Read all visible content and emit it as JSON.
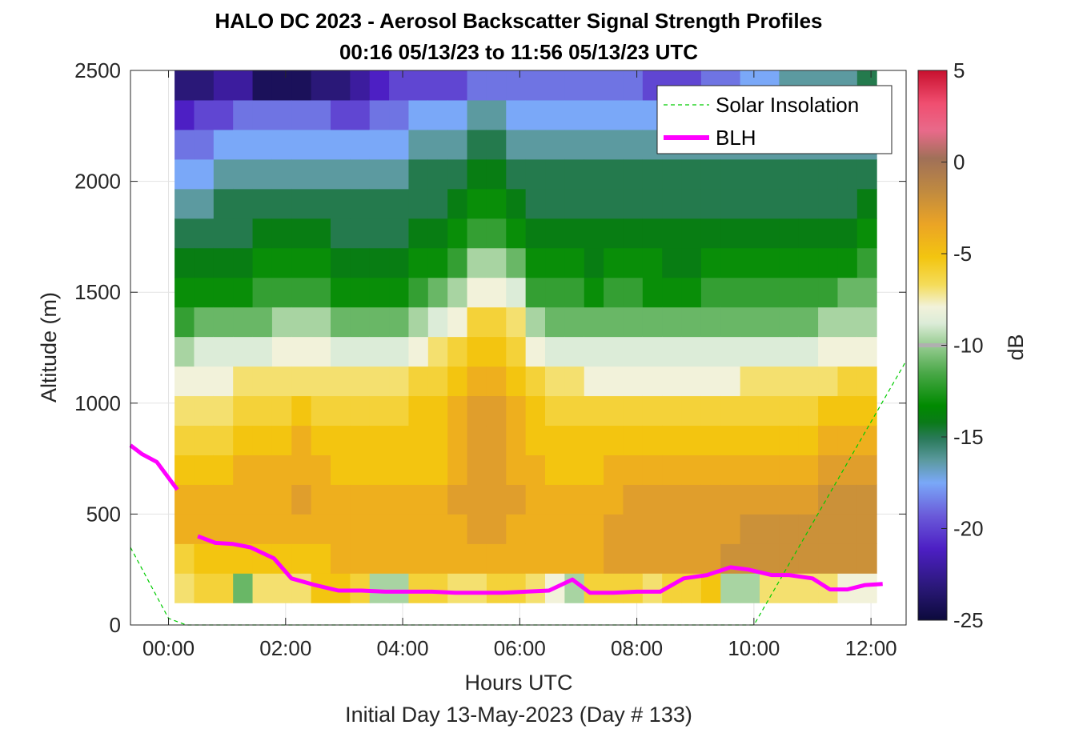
{
  "chart_data": {
    "type": "heatmap",
    "title": "HALO DC 2023 - Aerosol Backscatter Signal Strength Profiles",
    "subtitle": "00:16 05/13/23 to 11:56 05/13/23  UTC",
    "xlabel": "Hours UTC",
    "xlabel2": "Initial Day 13-May-2023 (Day # 133)",
    "ylabel": "Altitude (m)",
    "xlim": [
      -0.65,
      12.6
    ],
    "ylim": [
      0,
      2500
    ],
    "x_ticks": [
      {
        "value": 0,
        "label": "00:00"
      },
      {
        "value": 2,
        "label": "02:00"
      },
      {
        "value": 4,
        "label": "04:00"
      },
      {
        "value": 6,
        "label": "06:00"
      },
      {
        "value": 8,
        "label": "08:00"
      },
      {
        "value": 10,
        "label": "10:00"
      },
      {
        "value": 12,
        "label": "12:00"
      }
    ],
    "y_ticks": [
      {
        "value": 0,
        "label": "0"
      },
      {
        "value": 500,
        "label": "500"
      },
      {
        "value": 1000,
        "label": "1000"
      },
      {
        "value": 1500,
        "label": "1500"
      },
      {
        "value": 2000,
        "label": "2000"
      },
      {
        "value": 2500,
        "label": "2500"
      }
    ],
    "grid": true,
    "colorbar": {
      "label": "dB",
      "range": [
        -25,
        5
      ],
      "ticks": [
        {
          "value": 5,
          "label": "5"
        },
        {
          "value": 0,
          "label": "0"
        },
        {
          "value": -5,
          "label": "-5"
        },
        {
          "value": -10,
          "label": "-10"
        },
        {
          "value": -15,
          "label": "-15"
        },
        {
          "value": -20,
          "label": "-20"
        },
        {
          "value": -25,
          "label": "-25"
        }
      ]
    },
    "heatmap": {
      "x_start": 0.27,
      "x_end": 11.93,
      "y_start": 100,
      "y_end": 2500,
      "profiles": [
        {
          "time": 0.27,
          "top": 2500,
          "db": [
            -8,
            -7,
            -5,
            -5,
            -6,
            -7,
            -8,
            -9,
            -11,
            -13,
            -14,
            -15,
            -16,
            -17,
            -18,
            -19,
            -21,
            -23
          ]
        },
        {
          "time": 0.6,
          "top": 2500,
          "db": [
            -7,
            -6,
            -5,
            -5,
            -6,
            -7,
            -8,
            -9,
            -10,
            -12,
            -14,
            -15,
            -16,
            -17,
            -18,
            -19,
            -20,
            -23
          ]
        },
        {
          "time": 0.93,
          "top": 2500,
          "db": [
            -7,
            -6,
            -5,
            -5,
            -6,
            -7,
            -8,
            -9,
            -10,
            -12,
            -14,
            -15,
            -16,
            -16,
            -17,
            -18,
            -20,
            -22
          ]
        },
        {
          "time": 1.27,
          "top": 2500,
          "db": [
            -12,
            -6,
            -5,
            -5,
            -5,
            -6,
            -7,
            -8,
            -10,
            -12,
            -14,
            -15,
            -16,
            -16,
            -17,
            -18,
            -19,
            -22
          ]
        },
        {
          "time": 1.6,
          "top": 2500,
          "db": [
            -8,
            -6,
            -5,
            -5,
            -5,
            -6,
            -7,
            -8,
            -10,
            -12,
            -13,
            -14,
            -15,
            -16,
            -17,
            -18,
            -19,
            -24
          ]
        },
        {
          "time": 1.93,
          "top": 2500,
          "db": [
            -8,
            -6,
            -5,
            -5,
            -5,
            -6,
            -7,
            -8,
            -9,
            -11,
            -13,
            -14,
            -15,
            -16,
            -17,
            -18,
            -19,
            -24
          ]
        },
        {
          "time": 2.27,
          "top": 2500,
          "db": [
            -8,
            -6,
            -5,
            -4,
            -5,
            -5,
            -6,
            -8,
            -9,
            -11,
            -13,
            -14,
            -15,
            -16,
            -17,
            -18,
            -19,
            -24
          ]
        },
        {
          "time": 2.6,
          "top": 2500,
          "db": [
            -6,
            -6,
            -5,
            -5,
            -5,
            -6,
            -7,
            -8,
            -9,
            -11,
            -13,
            -14,
            -15,
            -16,
            -17,
            -18,
            -19,
            -23
          ]
        },
        {
          "time": 2.93,
          "top": 2500,
          "db": [
            -6,
            -5,
            -5,
            -5,
            -6,
            -6,
            -7,
            -8,
            -10,
            -12,
            -14,
            -15,
            -16,
            -16,
            -17,
            -18,
            -20,
            -23
          ]
        },
        {
          "time": 3.27,
          "top": 2500,
          "db": [
            -7,
            -5,
            -5,
            -5,
            -6,
            -6,
            -7,
            -8,
            -10,
            -12,
            -14,
            -15,
            -16,
            -16,
            -17,
            -18,
            -20,
            -22
          ]
        },
        {
          "time": 3.6,
          "top": 2500,
          "db": [
            -11,
            -5,
            -5,
            -5,
            -6,
            -6,
            -7,
            -8,
            -10,
            -12,
            -14,
            -15,
            -16,
            -16,
            -17,
            -18,
            -19,
            -21
          ]
        },
        {
          "time": 3.93,
          "top": 2500,
          "db": [
            -11,
            -5,
            -5,
            -5,
            -6,
            -6,
            -7,
            -8,
            -10,
            -12,
            -14,
            -15,
            -16,
            -16,
            -17,
            -18,
            -19,
            -20
          ]
        },
        {
          "time": 4.27,
          "top": 2500,
          "db": [
            -7,
            -5,
            -5,
            -5,
            -6,
            -6,
            -6,
            -7,
            -9,
            -11,
            -13,
            -14,
            -15,
            -16,
            -16,
            -17,
            -18,
            -20
          ]
        },
        {
          "time": 4.6,
          "top": 2500,
          "db": [
            -7,
            -5,
            -5,
            -5,
            -6,
            -6,
            -6,
            -7,
            -8,
            -10,
            -12,
            -14,
            -15,
            -16,
            -16,
            -17,
            -18,
            -20
          ]
        },
        {
          "time": 4.93,
          "top": 2500,
          "db": [
            -8,
            -5,
            -5,
            -4,
            -5,
            -5,
            -5,
            -6,
            -7,
            -9,
            -11,
            -13,
            -14,
            -15,
            -16,
            -17,
            -18,
            -20
          ]
        },
        {
          "time": 5.27,
          "top": 2500,
          "db": [
            -8,
            -5,
            -4,
            -4,
            -4,
            -4,
            -4,
            -5,
            -6,
            -7,
            -9,
            -11,
            -13,
            -14,
            -15,
            -16,
            -17,
            -19
          ]
        },
        {
          "time": 5.6,
          "top": 2500,
          "db": [
            -7,
            -5,
            -4,
            -4,
            -4,
            -4,
            -4,
            -5,
            -6,
            -7,
            -9,
            -11,
            -13,
            -14,
            -15,
            -16,
            -17,
            -19
          ]
        },
        {
          "time": 5.93,
          "top": 2500,
          "db": [
            -7,
            -5,
            -5,
            -4,
            -5,
            -5,
            -5,
            -6,
            -7,
            -8,
            -10,
            -12,
            -14,
            -15,
            -16,
            -17,
            -18,
            -19
          ]
        },
        {
          "time": 6.27,
          "top": 2500,
          "db": [
            -8,
            -5,
            -5,
            -5,
            -5,
            -6,
            -6,
            -7,
            -9,
            -11,
            -13,
            -14,
            -15,
            -16,
            -16,
            -17,
            -18,
            -19
          ]
        },
        {
          "time": 6.6,
          "top": 2500,
          "db": [
            -9,
            -5,
            -5,
            -5,
            -6,
            -6,
            -7,
            -8,
            -10,
            -12,
            -13,
            -14,
            -15,
            -16,
            -16,
            -17,
            -18,
            -19
          ]
        },
        {
          "time": 6.93,
          "top": 2500,
          "db": [
            -11,
            -5,
            -5,
            -5,
            -6,
            -6,
            -7,
            -8,
            -10,
            -12,
            -13,
            -14,
            -15,
            -16,
            -16,
            -17,
            -18,
            -19
          ]
        },
        {
          "time": 7.27,
          "top": 2500,
          "db": [
            -7,
            -5,
            -5,
            -5,
            -6,
            -6,
            -7,
            -9,
            -10,
            -12,
            -14,
            -15,
            -15,
            -16,
            -16,
            -17,
            -18,
            -19
          ]
        },
        {
          "time": 7.6,
          "top": 2500,
          "db": [
            -7,
            -4,
            -4,
            -5,
            -5,
            -6,
            -7,
            -9,
            -10,
            -12,
            -13,
            -14,
            -15,
            -16,
            -16,
            -17,
            -18,
            -19
          ]
        },
        {
          "time": 7.93,
          "top": 2500,
          "db": [
            -7,
            -4,
            -4,
            -4,
            -5,
            -6,
            -7,
            -9,
            -10,
            -12,
            -13,
            -14,
            -15,
            -16,
            -16,
            -17,
            -18,
            -19
          ]
        },
        {
          "time": 8.27,
          "top": 2500,
          "db": [
            -8,
            -4,
            -4,
            -4,
            -5,
            -6,
            -7,
            -9,
            -10,
            -12,
            -14,
            -14,
            -15,
            -16,
            -16,
            -17,
            -18,
            -20
          ]
        },
        {
          "time": 8.6,
          "top": 2500,
          "db": [
            -7,
            -4,
            -4,
            -4,
            -5,
            -6,
            -7,
            -9,
            -10,
            -12,
            -14,
            -15,
            -15,
            -16,
            -16,
            -17,
            -18,
            -20
          ]
        },
        {
          "time": 8.93,
          "top": 2500,
          "db": [
            -7,
            -4,
            -4,
            -4,
            -5,
            -6,
            -7,
            -9,
            -10,
            -12,
            -14,
            -15,
            -15,
            -16,
            -16,
            -17,
            -18,
            -20
          ]
        },
        {
          "time": 9.27,
          "top": 2500,
          "db": [
            -6,
            -4,
            -4,
            -4,
            -5,
            -6,
            -7,
            -9,
            -10,
            -12,
            -13,
            -14,
            -15,
            -16,
            -16,
            -17,
            -18,
            -19
          ]
        },
        {
          "time": 9.6,
          "top": 2500,
          "db": [
            -11,
            -3,
            -4,
            -4,
            -5,
            -6,
            -7,
            -9,
            -10,
            -12,
            -13,
            -14,
            -15,
            -16,
            -16,
            -17,
            -18,
            -19
          ]
        },
        {
          "time": 9.93,
          "top": 2500,
          "db": [
            -11,
            -3,
            -3,
            -4,
            -5,
            -6,
            -7,
            -8,
            -10,
            -12,
            -13,
            -14,
            -15,
            -16,
            -16,
            -17,
            -18,
            -18
          ]
        },
        {
          "time": 10.27,
          "top": 2500,
          "db": [
            -8,
            -3,
            -3,
            -4,
            -5,
            -6,
            -7,
            -8,
            -10,
            -12,
            -13,
            -14,
            -15,
            -16,
            -16,
            -17,
            -17,
            -18
          ]
        },
        {
          "time": 10.6,
          "top": 2500,
          "db": [
            -8,
            -3,
            -3,
            -4,
            -5,
            -6,
            -7,
            -8,
            -10,
            -12,
            -13,
            -14,
            -15,
            -16,
            -16,
            -17,
            -17,
            -17
          ]
        },
        {
          "time": 10.93,
          "top": 2500,
          "db": [
            -8,
            -3,
            -3,
            -4,
            -5,
            -6,
            -7,
            -8,
            -10,
            -12,
            -13,
            -14,
            -15,
            -16,
            -16,
            -17,
            -17,
            -17
          ]
        },
        {
          "time": 11.27,
          "top": 2500,
          "db": [
            -8,
            -3,
            -3,
            -3,
            -4,
            -5,
            -6,
            -8,
            -9,
            -11,
            -13,
            -14,
            -15,
            -16,
            -16,
            -17,
            -17,
            -17
          ]
        },
        {
          "time": 11.6,
          "top": 2500,
          "db": [
            -9,
            -3,
            -3,
            -3,
            -4,
            -5,
            -6,
            -7,
            -9,
            -11,
            -12,
            -14,
            -15,
            -16,
            -16,
            -17,
            -17,
            -17
          ]
        },
        {
          "time": 11.93,
          "top": 2500,
          "db": [
            -9,
            -3,
            -3,
            -3,
            -4,
            -5,
            -6,
            -7,
            -9,
            -11,
            -12,
            -13,
            -14,
            -15,
            -16,
            -17,
            -17,
            -16
          ]
        }
      ]
    },
    "series": [
      {
        "name": "Solar Insolation",
        "color": "#00cc00",
        "style": "dashed",
        "x": [
          -0.65,
          0.0,
          0.3,
          10.0,
          12.6
        ],
        "y": [
          350,
          30,
          0,
          0,
          1190
        ]
      },
      {
        "name": "BLH",
        "color": "#ff00ff",
        "style": "solid",
        "segments": [
          {
            "x": [
              -0.65,
              -0.45,
              -0.2,
              0.15
            ],
            "y": [
              810,
              770,
              735,
              610
            ]
          },
          {
            "x": [
              0.5,
              0.8,
              1.1,
              1.4,
              1.8,
              2.1,
              2.5,
              2.9,
              3.3,
              3.7,
              4.1,
              4.5,
              4.9,
              5.3,
              5.7,
              6.1,
              6.5,
              6.9,
              7.2,
              7.6,
              8.0,
              8.4,
              8.8,
              9.2,
              9.6,
              9.9,
              10.3,
              10.6,
              11.0,
              11.3,
              11.6,
              11.9,
              12.2
            ],
            "y": [
              400,
              370,
              365,
              350,
              300,
              210,
              180,
              155,
              155,
              150,
              150,
              150,
              145,
              145,
              145,
              150,
              155,
              205,
              145,
              145,
              150,
              150,
              210,
              225,
              260,
              250,
              225,
              225,
              210,
              160,
              160,
              180,
              185
            ]
          }
        ]
      }
    ],
    "legend": {
      "position": "top-right",
      "entries": [
        "Solar Insolation",
        "BLH"
      ]
    }
  }
}
